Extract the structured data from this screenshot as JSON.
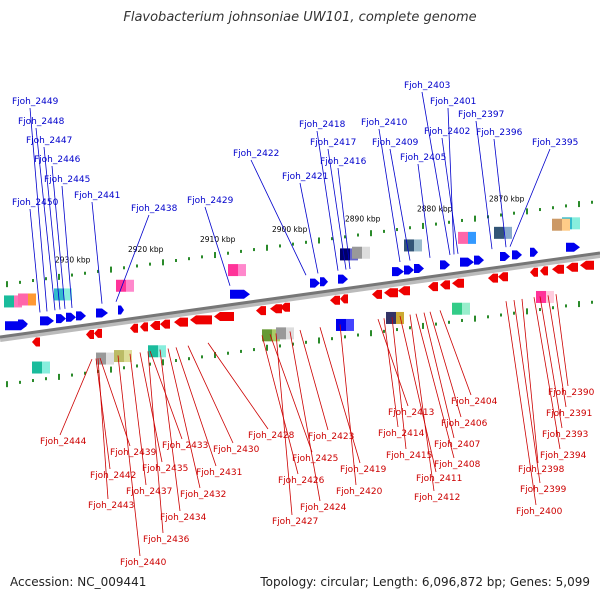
{
  "header": {
    "title": "Flavobacterium johnsoniae UW101, complete genome"
  },
  "footer": {
    "accession": "Accession: NC_009441",
    "summary": "Topology: circular; Length: 6,096,872 bp; Genes: 5,099"
  },
  "scale_ticks": [
    "2870 kbp",
    "2880 kbp",
    "2890 kbp",
    "2900 kbp",
    "2910 kbp",
    "2920 kbp",
    "2930 kbp"
  ],
  "upper_labels": [
    "Fjoh_2449",
    "Fjoh_2448",
    "Fjoh_2447",
    "Fjoh_2446",
    "Fjoh_2445",
    "Fjoh_2450",
    "Fjoh_2441",
    "Fjoh_2438",
    "Fjoh_2429",
    "Fjoh_2422",
    "Fjoh_2421",
    "Fjoh_2418",
    "Fjoh_2417",
    "Fjoh_2416",
    "Fjoh_2410",
    "Fjoh_2409",
    "Fjoh_2405",
    "Fjoh_2403",
    "Fjoh_2401",
    "Fjoh_2402",
    "Fjoh_2397",
    "Fjoh_2396",
    "Fjoh_2395"
  ],
  "lower_labels": [
    "Fjoh_2444",
    "Fjoh_2439",
    "Fjoh_2442",
    "Fjoh_2443",
    "Fjoh_2437",
    "Fjoh_2435",
    "Fjoh_2433",
    "Fjoh_2434",
    "Fjoh_2436",
    "Fjoh_2440",
    "Fjoh_2431",
    "Fjoh_2432",
    "Fjoh_2430",
    "Fjoh_2428",
    "Fjoh_2426",
    "Fjoh_2425",
    "Fjoh_2427",
    "Fjoh_2424",
    "Fjoh_2423",
    "Fjoh_2419",
    "Fjoh_2420",
    "Fjoh_2413",
    "Fjoh_2414",
    "Fjoh_2415",
    "Fjoh_2412",
    "Fjoh_2411",
    "Fjoh_2408",
    "Fjoh_2407",
    "Fjoh_2406",
    "Fjoh_2404",
    "Fjoh_2400",
    "Fjoh_2399",
    "Fjoh_2398",
    "Fjoh_2394",
    "Fjoh_2393",
    "Fjoh_2391",
    "Fjoh_2390"
  ],
  "colors": {
    "forward": "#0000ee",
    "reverse": "#ee0000",
    "upper_label": "#0000cc",
    "lower_label": "#cc0000",
    "tick": "#2a8a2a",
    "backbone": "#777777"
  }
}
